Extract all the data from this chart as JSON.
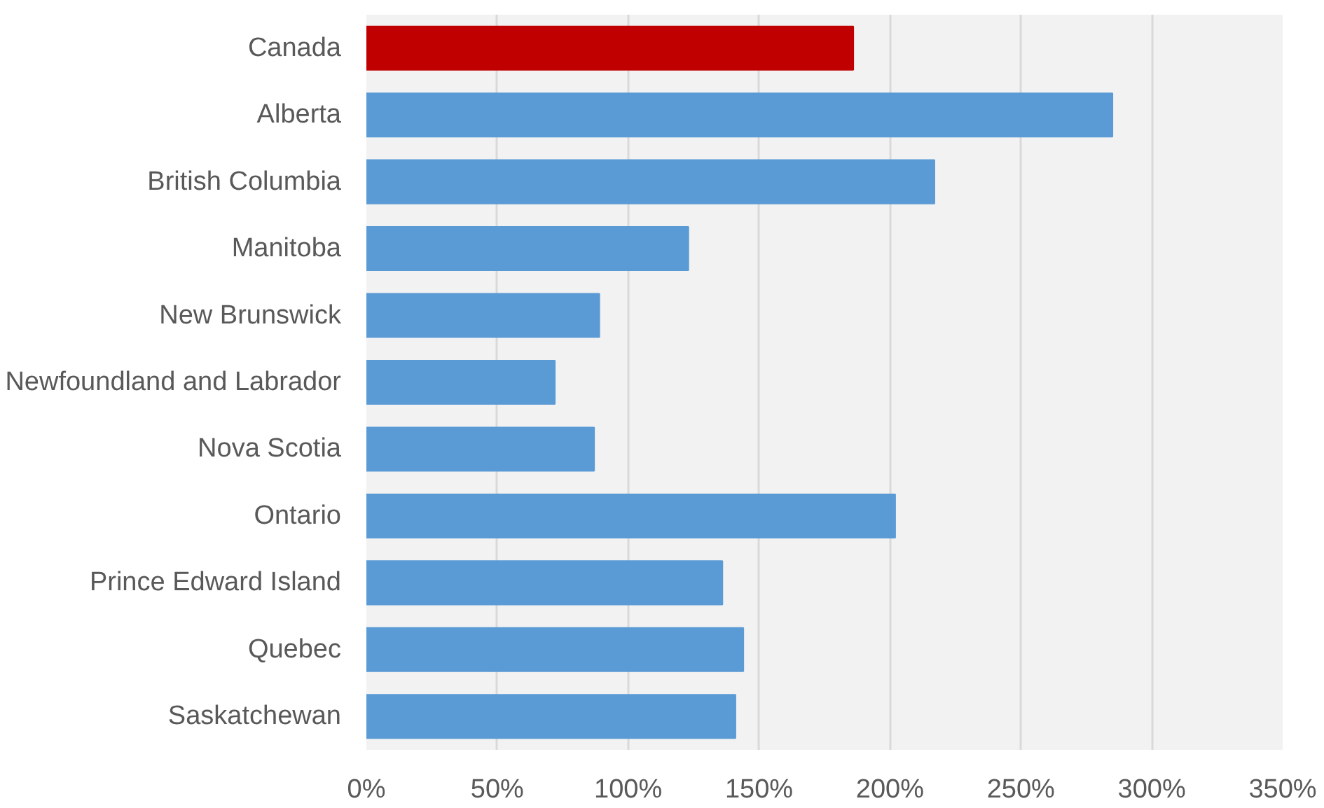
{
  "chart_data": {
    "type": "bar",
    "orientation": "horizontal",
    "categories": [
      "Canada",
      "Alberta",
      "British Columbia",
      "Manitoba",
      "New Brunswick",
      "Newfoundland and Labrador",
      "Nova Scotia",
      "Ontario",
      "Prince Edward Island",
      "Quebec",
      "Saskatchewan"
    ],
    "values": [
      186,
      285,
      217,
      123,
      89,
      72,
      87,
      202,
      136,
      144,
      141
    ],
    "colors": [
      "#c00000",
      "#5b9bd5",
      "#5b9bd5",
      "#5b9bd5",
      "#5b9bd5",
      "#5b9bd5",
      "#5b9bd5",
      "#5b9bd5",
      "#5b9bd5",
      "#5b9bd5",
      "#5b9bd5"
    ],
    "xlim": [
      0,
      350
    ],
    "xticks": [
      {
        "value": 0,
        "label": "0%"
      },
      {
        "value": 50,
        "label": "50%"
      },
      {
        "value": 100,
        "label": "100%"
      },
      {
        "value": 150,
        "label": "150%"
      },
      {
        "value": 200,
        "label": "200%"
      },
      {
        "value": 250,
        "label": "250%"
      },
      {
        "value": 300,
        "label": "300%"
      },
      {
        "value": 350,
        "label": "350%"
      }
    ],
    "grid": "x"
  }
}
